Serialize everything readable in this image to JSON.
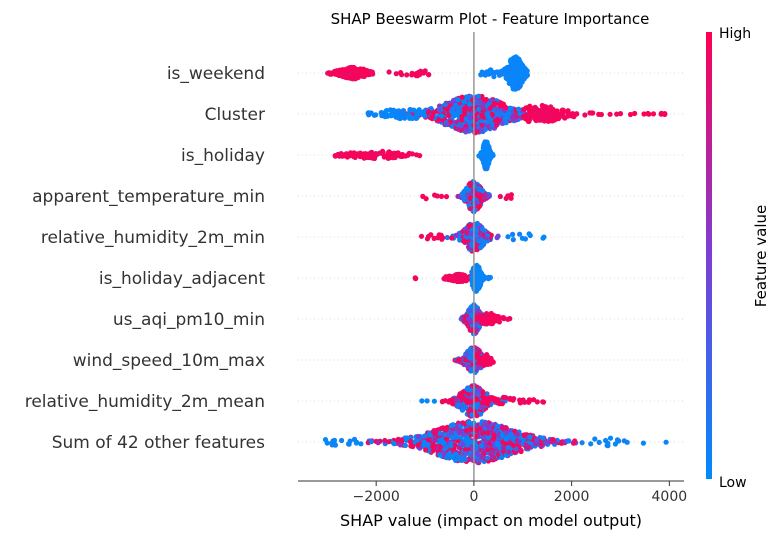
{
  "chart_data": {
    "type": "scatter",
    "subtype": "beeswarm",
    "title": "SHAP Beeswarm Plot - Feature Importance",
    "xlabel": "SHAP value (impact on model output)",
    "xlim": [
      -3600,
      4300
    ],
    "xticks": [
      -2000,
      0,
      2000,
      4000
    ],
    "xtick_labels": [
      "−2000",
      "0",
      "2000",
      "4000"
    ],
    "colorbar": {
      "title": "Feature value",
      "high_label": "High",
      "low_label": "Low",
      "low_color": "#008bfb",
      "mid_color": "#7c3ed6",
      "high_color": "#ff0052"
    },
    "zero_line": true,
    "features": [
      {
        "name": "is_weekend",
        "clusters": [
          {
            "min": -3000,
            "max": -1900,
            "mean": -2450,
            "sd": 220,
            "n": 210,
            "width": 5,
            "color": "high"
          },
          {
            "min": -1750,
            "max": -850,
            "mean": -1200,
            "sd": 260,
            "n": 20,
            "width": 2,
            "color": "high"
          },
          {
            "min": 50,
            "max": 1100,
            "mean": 850,
            "sd": 120,
            "n": 300,
            "width": 17,
            "color": "low"
          },
          {
            "min": 100,
            "max": 800,
            "mean": 400,
            "sd": 200,
            "n": 25,
            "width": 3,
            "color": "low"
          }
        ]
      },
      {
        "name": "Cluster",
        "clusters": [
          {
            "min": -2400,
            "max": 3600,
            "mean": 0,
            "sd": 550,
            "n": 650,
            "width": 18,
            "color": "grad"
          },
          {
            "min": 1000,
            "max": 4000,
            "mean": 1300,
            "sd": 450,
            "n": 120,
            "width": 8,
            "color": "high"
          },
          {
            "min": -2400,
            "max": -1000,
            "mean": -1400,
            "sd": 350,
            "n": 60,
            "width": 5,
            "color": "low"
          }
        ]
      },
      {
        "name": "is_holiday",
        "clusters": [
          {
            "min": -2900,
            "max": -1000,
            "mean": -2000,
            "sd": 450,
            "n": 90,
            "width": 3,
            "color": "high"
          },
          {
            "min": 100,
            "max": 400,
            "mean": 250,
            "sd": 50,
            "n": 260,
            "width": 14,
            "color": "low"
          }
        ]
      },
      {
        "name": "apparent_temperature_min",
        "clusters": [
          {
            "min": -650,
            "max": 1000,
            "mean": 0,
            "sd": 120,
            "n": 220,
            "width": 15,
            "color": "grad"
          },
          {
            "min": -1500,
            "max": -500,
            "mean": -900,
            "sd": 280,
            "n": 6,
            "width": 2,
            "color": "high"
          },
          {
            "min": 500,
            "max": 1000,
            "mean": 750,
            "sd": 150,
            "n": 5,
            "width": 2,
            "color": "high"
          }
        ]
      },
      {
        "name": "relative_humidity_2m_min",
        "clusters": [
          {
            "min": -1100,
            "max": 700,
            "mean": 0,
            "sd": 170,
            "n": 230,
            "width": 14,
            "color": "grad"
          },
          {
            "min": -1150,
            "max": -400,
            "mean": -800,
            "sd": 200,
            "n": 12,
            "width": 2,
            "color": "high"
          },
          {
            "min": 500,
            "max": 1450,
            "mean": 1000,
            "sd": 250,
            "n": 10,
            "width": 3,
            "color": "low"
          }
        ]
      },
      {
        "name": "is_holiday_adjacent",
        "clusters": [
          {
            "min": -1250,
            "max": -1150,
            "mean": -1200,
            "sd": 20,
            "n": 3,
            "width": 1,
            "color": "high"
          },
          {
            "min": -650,
            "max": 0,
            "mean": -300,
            "sd": 150,
            "n": 140,
            "width": 3,
            "color": "high"
          },
          {
            "min": -50,
            "max": 350,
            "mean": 50,
            "sd": 70,
            "n": 200,
            "width": 13,
            "color": "low"
          }
        ]
      },
      {
        "name": "us_aqi_pm10_min",
        "clusters": [
          {
            "min": -300,
            "max": 300,
            "mean": 0,
            "sd": 100,
            "n": 230,
            "width": 14,
            "color": "grad"
          },
          {
            "min": 0,
            "max": 800,
            "mean": 300,
            "sd": 170,
            "n": 60,
            "width": 5,
            "color": "high"
          }
        ]
      },
      {
        "name": "wind_speed_10m_max",
        "clusters": [
          {
            "min": -550,
            "max": 500,
            "mean": 0,
            "sd": 140,
            "n": 240,
            "width": 12,
            "color": "grad"
          },
          {
            "min": 100,
            "max": 500,
            "mean": 250,
            "sd": 100,
            "n": 40,
            "width": 5,
            "color": "high"
          }
        ]
      },
      {
        "name": "relative_humidity_2m_mean",
        "clusters": [
          {
            "min": -1100,
            "max": 1700,
            "mean": 0,
            "sd": 220,
            "n": 250,
            "width": 15,
            "color": "grad"
          },
          {
            "min": -600,
            "max": 1700,
            "mean": 500,
            "sd": 450,
            "n": 40,
            "width": 3,
            "color": "high"
          },
          {
            "min": -1100,
            "max": -700,
            "mean": -900,
            "sd": 100,
            "n": 3,
            "width": 1,
            "color": "low"
          }
        ]
      },
      {
        "name": "Sum of 42 other features",
        "clusters": [
          {
            "min": -3100,
            "max": 3950,
            "mean": 0,
            "sd": 750,
            "n": 800,
            "width": 20,
            "color": "grad"
          },
          {
            "min": -3200,
            "max": -2300,
            "mean": -2700,
            "sd": 300,
            "n": 15,
            "width": 3,
            "color": "low"
          },
          {
            "min": 2300,
            "max": 3950,
            "mean": 2800,
            "sd": 450,
            "n": 15,
            "width": 3,
            "color": "low"
          }
        ]
      }
    ]
  }
}
